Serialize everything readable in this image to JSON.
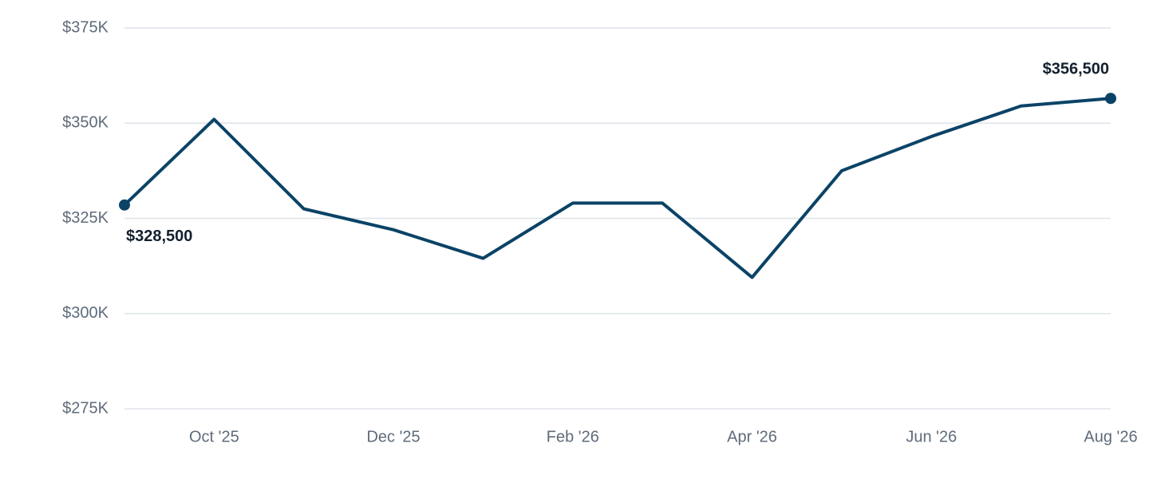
{
  "chart_data": {
    "type": "line",
    "categories": [
      null,
      "Oct '25",
      null,
      "Dec '25",
      null,
      "Feb '26",
      null,
      "Apr '26",
      null,
      "Jun '26",
      null,
      "Aug '26"
    ],
    "series": [
      {
        "color": "#0b4366",
        "values": [
          328500,
          351000,
          327500,
          322000,
          314500,
          329000,
          329000,
          309500,
          337500,
          346500,
          354500,
          356500
        ],
        "value_labels": [
          "$328,500",
          null,
          null,
          null,
          null,
          null,
          null,
          null,
          null,
          null,
          null,
          "$356,500"
        ]
      }
    ],
    "ylim": [
      275000,
      375000
    ],
    "yticks": [
      {
        "value": 275000,
        "label": "$275K"
      },
      {
        "value": 300000,
        "label": "$300K"
      },
      {
        "value": 325000,
        "label": "$325K"
      },
      {
        "value": 350000,
        "label": "$350K"
      },
      {
        "value": 375000,
        "label": "$375K"
      }
    ],
    "grid": true
  }
}
